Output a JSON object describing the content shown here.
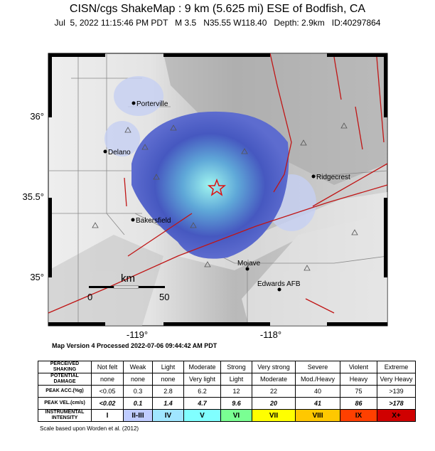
{
  "header": {
    "title": "CISN/cgs ShakeMap : 9 km (5.625 mi) ESE of Bodfish, CA",
    "subtitle": "Jul  5, 2022 11:15:46 PM PDT   M 3.5   N35.55 W118.40   Depth: 2.9km   ID:40297864"
  },
  "map": {
    "cities": [
      "Porterville",
      "Delano",
      "Ridgecrest",
      "Bakersfield",
      "Mojave",
      "Edwards AFB"
    ],
    "lat_labels": [
      "36°",
      "35.5°",
      "35°"
    ],
    "lon_labels": [
      "-119°",
      "-118°"
    ],
    "scale": {
      "unit": "km",
      "start": "0",
      "end": "50"
    }
  },
  "map_version": "Map Version 4 Processed 2022-07-06 09:44:42 AM PDT",
  "legend": {
    "rows": [
      {
        "label": "PERCEIVED SHAKING",
        "cells": [
          "Not felt",
          "Weak",
          "Light",
          "Moderate",
          "Strong",
          "Very strong",
          "Severe",
          "Violent",
          "Extreme"
        ]
      },
      {
        "label": "POTENTIAL DAMAGE",
        "cells": [
          "none",
          "none",
          "none",
          "Very light",
          "Light",
          "Moderate",
          "Mod./Heavy",
          "Heavy",
          "Very Heavy"
        ]
      },
      {
        "label": "PEAK ACC.(%g)",
        "cells": [
          "<0.05",
          "0.3",
          "2.8",
          "6.2",
          "12",
          "22",
          "40",
          "75",
          ">139"
        ]
      },
      {
        "label": "PEAK VEL.(cm/s)",
        "cells": [
          "<0.02",
          "0.1",
          "1.4",
          "4.7",
          "9.6",
          "20",
          "41",
          "86",
          ">178"
        ]
      },
      {
        "label": "INSTRUMENTAL INTENSITY",
        "cells": [
          "I",
          "II-III",
          "IV",
          "V",
          "VI",
          "VII",
          "VIII",
          "IX",
          "X+"
        ]
      }
    ],
    "intensity_colors": [
      "#ffffff",
      "#bfccff",
      "#a0e6ff",
      "#80ffff",
      "#7aff93",
      "#ffff00",
      "#ffc800",
      "#ff4000",
      "#d00000"
    ]
  },
  "footnote": "Scale based upon Worden et al. (2012)"
}
